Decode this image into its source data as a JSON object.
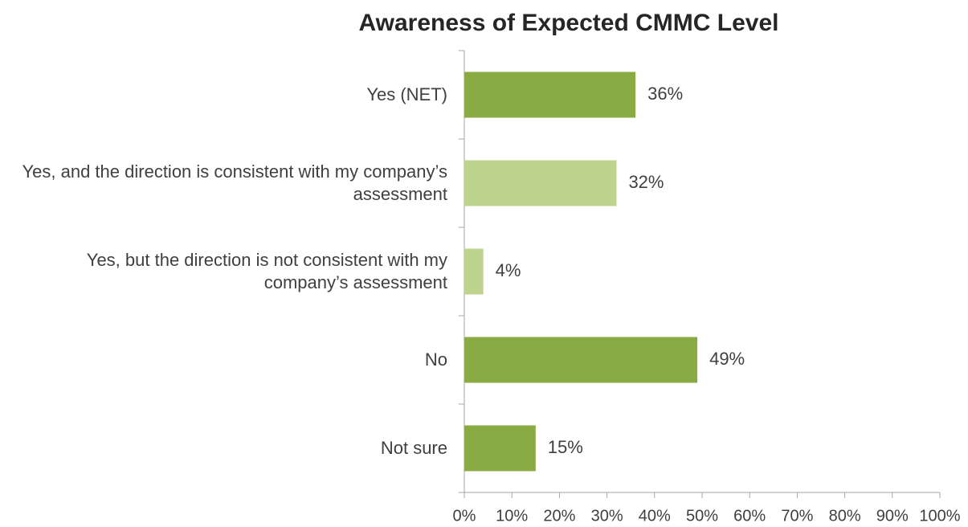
{
  "chart_data": {
    "type": "barh",
    "title": "Awareness of Expected CMMC Level",
    "categories": [
      "Yes (NET)",
      "Yes, and the direction is consistent with my company’s assessment",
      "Yes, but the direction is not consistent with my company’s assessment",
      "No",
      "Not sure"
    ],
    "values": [
      36,
      32,
      4,
      49,
      15
    ],
    "value_labels": [
      "36%",
      "32%",
      "4%",
      "49%",
      "15%"
    ],
    "colors": [
      "#8aab44",
      "#bed38e",
      "#bed38e",
      "#8aab44",
      "#8aab44"
    ],
    "xlim": [
      0,
      100
    ],
    "xticks": [
      {
        "value": 0,
        "label": "0%"
      },
      {
        "value": 10,
        "label": "10%"
      },
      {
        "value": 20,
        "label": "20%"
      },
      {
        "value": 30,
        "label": "30%"
      },
      {
        "value": 40,
        "label": "40%"
      },
      {
        "value": 50,
        "label": "50%"
      },
      {
        "value": 60,
        "label": "60%"
      },
      {
        "value": 70,
        "label": "70%"
      },
      {
        "value": 80,
        "label": "80%"
      },
      {
        "value": 90,
        "label": "90%"
      },
      {
        "value": 100,
        "label": "100%"
      }
    ],
    "grid": false
  }
}
